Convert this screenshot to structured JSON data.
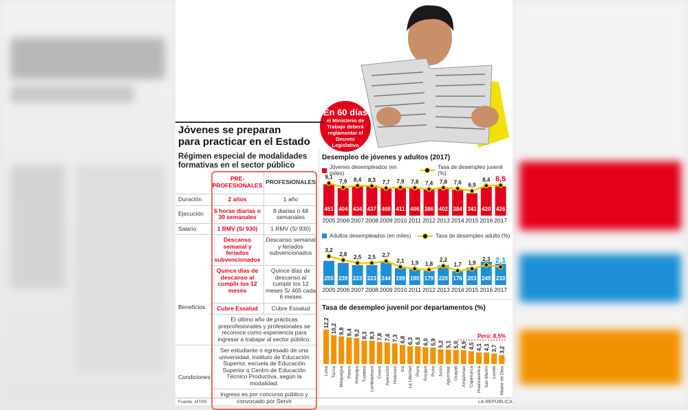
{
  "header": {
    "title_line1": "Jóvenes se preparan",
    "title_line2": "para practicar en el Estado",
    "badge_big": "En 60 días",
    "badge_small": "el Ministerio de Trabajo deberá reglamentar el Decreto Legislativo"
  },
  "table": {
    "subtitle_line1": "Régimen especial de modalidades",
    "subtitle_line2": "formativas en el sector público",
    "col_pre": "PRE-PROFESIONALES",
    "col_pro": "PROFESIONALES",
    "rows": {
      "duracion": "Duración",
      "ejecucion": "Ejecución",
      "salario": "Salario",
      "beneficios": "Beneficios",
      "condiciones": "Condiciones"
    },
    "pre": {
      "duracion": "2 años",
      "ejecucion": "6 horas diarias o 30 semanales",
      "salario": "1 RMV (S/ 930)",
      "descanso": "Descanso semanal y feriados subvencionados",
      "quince": "Quince días de descanso al cumplir los 12 meses",
      "essalud": "Cubre Essalud"
    },
    "pro": {
      "duracion": "1 año",
      "ejecucion": "8 diarias o 48 semanales",
      "salario": "1 RMV (S/ 930)",
      "descanso": "Descanso semanal y feriados subvencionados",
      "quince": "Quince días de descanso al cumplir los 12 meses S/ 465 cada 6 meses",
      "essalud": "Cubre Essalud"
    },
    "shared_benefit": "El último año de prácticas preprofesionales y profesionales se reconoce como experiencia para ingresar a trabajar al sector público.",
    "cond1": "Ser estudiante o egresado de una universidad, instituto de Educación Superior, escuela de Educación Superior o Centro de Educación Técnico Productiva, según la modalidad.",
    "cond2": "Ingreso es por concurso público y convocado por Servir"
  },
  "footer": {
    "source": "Fuente:  MTPE",
    "brand": "LA REPÚBLICA"
  },
  "colors": {
    "red": "#e3001b",
    "blue": "#1e8fd6",
    "orange": "#f39200",
    "line": "#f5c400"
  },
  "chart_data": [
    {
      "type": "bar",
      "title": "Desempleo de jóvenes y adultos (2017)",
      "categories": [
        "2005",
        "2006",
        "2007",
        "2008",
        "2009",
        "2010",
        "2011",
        "2012",
        "2013",
        "2014",
        "2015",
        "2016",
        "2017"
      ],
      "series": [
        {
          "name": "Jóvenes desempleados (en miles)",
          "type": "bar",
          "values": [
            451,
            404,
            434,
            437,
            408,
            411,
            406,
            386,
            402,
            384,
            341,
            420,
            426
          ]
        },
        {
          "name": "Tasa de desempleo juvenil (%)",
          "type": "line",
          "values": [
            9.1,
            7.9,
            8.4,
            8.3,
            7.7,
            7.9,
            7.8,
            7.4,
            7.8,
            7.6,
            6.9,
            8.4,
            8.5
          ]
        }
      ]
    },
    {
      "type": "bar",
      "title": "",
      "categories": [
        "2005",
        "2006",
        "2007",
        "2008",
        "2009",
        "2010",
        "2011",
        "2012",
        "2013",
        "2014",
        "2015",
        "2016",
        "2017"
      ],
      "series": [
        {
          "name": "Adultos desempleados (en miles)",
          "type": "bar",
          "values": [
            255,
            239,
            223,
            223,
            244,
            199,
            190,
            179,
            220,
            176,
            203,
            249,
            233
          ]
        },
        {
          "name": "Tasa de desempleo adulto (%)",
          "type": "line",
          "values": [
            3.2,
            2.8,
            2.5,
            2.5,
            2.7,
            2.1,
            1.9,
            1.8,
            2.2,
            1.7,
            1.9,
            2.3,
            2.1
          ]
        }
      ]
    },
    {
      "type": "bar",
      "title": "Tasa de desempleo juvenil por departamentos (%)",
      "categories": [
        "Lima",
        "Tacna",
        "Moquegua",
        "Pasco",
        "Arequipa",
        "Tumbes",
        "Lambayeque",
        "Cusco",
        "Ayacucho",
        "Huánuco",
        "Ica",
        "La Libertad",
        "Piura",
        "Áncash",
        "Puno",
        "Junín",
        "Apurímac",
        "Ucayali",
        "Amazonas",
        "Cajamarca",
        "Huancavelica",
        "San Martín",
        "Loreto",
        "Madre de Dios"
      ],
      "values": [
        12.2,
        10.2,
        9.8,
        9.4,
        9.2,
        8.3,
        8.3,
        7.8,
        7.6,
        7.3,
        6.8,
        6.3,
        6.3,
        6.0,
        5.9,
        5.2,
        5.1,
        5.0,
        4.9,
        4.5,
        4.1,
        4.1,
        3.7,
        3.2
      ],
      "labels": [
        "12,2",
        "10,2",
        "9,8",
        "9,4",
        "9,2",
        "8,3",
        "8,3",
        "7,8",
        "7,6",
        "7,3",
        "6,8",
        "6,3",
        "6,3",
        "6,0",
        "5,9",
        "5,2",
        "5,1",
        "5,0",
        "4,9",
        "4,5",
        "4,1",
        "4,1",
        "3,7",
        "3,2"
      ],
      "reference": {
        "label": "Perú: 8,5%",
        "value": 8.5
      }
    }
  ]
}
